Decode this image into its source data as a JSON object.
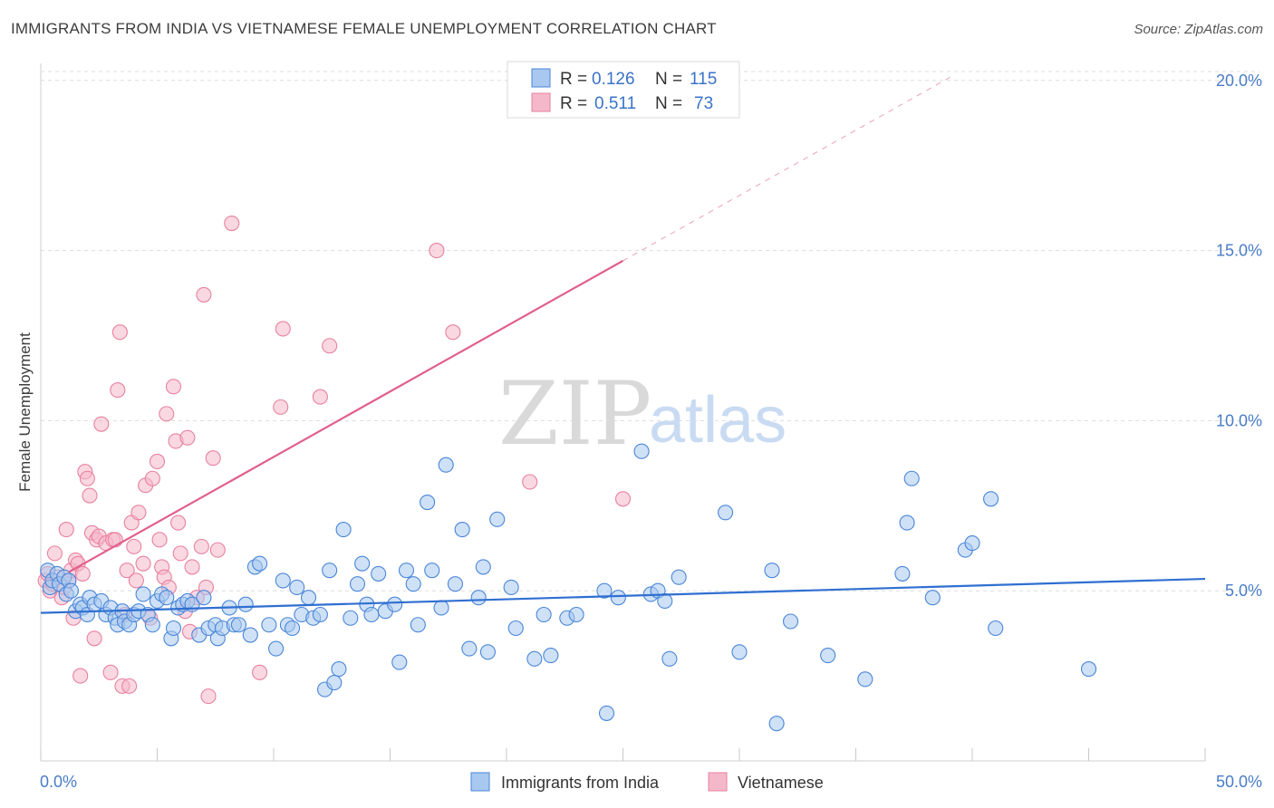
{
  "header": {
    "title": "IMMIGRANTS FROM INDIA VS VIETNAMESE FEMALE UNEMPLOYMENT CORRELATION CHART",
    "source": "Source: ZipAtlas.com"
  },
  "watermark": {
    "zip": "ZIP",
    "atlas": "atlas"
  },
  "legend": {
    "r_label": "R =",
    "n_label": "N =",
    "rows": [
      {
        "r": "0.126",
        "n": "115",
        "color": "#a8c8ef"
      },
      {
        "r": "0.511",
        "n": "73",
        "color": "#f5b8cb"
      }
    ]
  },
  "chart_data": {
    "type": "scatter",
    "title": "IMMIGRANTS FROM INDIA VS VIETNAMESE FEMALE UNEMPLOYMENT CORRELATION CHART",
    "xlabel": "",
    "ylabel": "Female Unemployment",
    "xlim": [
      0,
      50
    ],
    "ylim": [
      0,
      20.5
    ],
    "x_tick_labels": [
      "0.0%",
      "50.0%"
    ],
    "y_ticks": [
      5,
      10,
      15,
      20
    ],
    "y_tick_labels": [
      "5.0%",
      "10.0%",
      "15.0%",
      "20.0%"
    ],
    "grid": "horizontal dashed",
    "legend_position": "top-center",
    "series": [
      {
        "name": "Immigrants from India",
        "color": "#4a86d8",
        "fill": "#a8c8ef",
        "trend": {
          "x": [
            0,
            50
          ],
          "y": [
            4.35,
            5.35
          ],
          "color": "#2f6fd1"
        },
        "points": [
          [
            0.3,
            5.6
          ],
          [
            0.4,
            5.1
          ],
          [
            0.5,
            5.3
          ],
          [
            0.7,
            5.5
          ],
          [
            0.8,
            5.2
          ],
          [
            1.0,
            5.4
          ],
          [
            1.1,
            4.9
          ],
          [
            1.2,
            5.3
          ],
          [
            1.3,
            5.0
          ],
          [
            1.5,
            4.4
          ],
          [
            1.7,
            4.6
          ],
          [
            1.8,
            4.5
          ],
          [
            2.0,
            4.3
          ],
          [
            2.1,
            4.8
          ],
          [
            2.3,
            4.6
          ],
          [
            2.6,
            4.7
          ],
          [
            2.8,
            4.3
          ],
          [
            3.0,
            4.5
          ],
          [
            3.2,
            4.2
          ],
          [
            3.3,
            4.0
          ],
          [
            3.5,
            4.4
          ],
          [
            3.6,
            4.1
          ],
          [
            3.8,
            4.0
          ],
          [
            4.0,
            4.3
          ],
          [
            4.2,
            4.4
          ],
          [
            4.4,
            4.9
          ],
          [
            4.6,
            4.3
          ],
          [
            4.8,
            4.0
          ],
          [
            5.0,
            4.7
          ],
          [
            5.2,
            4.9
          ],
          [
            5.4,
            4.8
          ],
          [
            5.6,
            3.6
          ],
          [
            5.7,
            3.9
          ],
          [
            5.9,
            4.5
          ],
          [
            6.1,
            4.6
          ],
          [
            6.3,
            4.7
          ],
          [
            6.5,
            4.6
          ],
          [
            6.8,
            3.7
          ],
          [
            7.0,
            4.8
          ],
          [
            7.2,
            3.9
          ],
          [
            7.5,
            4.0
          ],
          [
            7.6,
            3.6
          ],
          [
            7.8,
            3.9
          ],
          [
            8.1,
            4.5
          ],
          [
            8.3,
            4.0
          ],
          [
            8.5,
            4.0
          ],
          [
            8.8,
            4.6
          ],
          [
            9.0,
            3.7
          ],
          [
            9.2,
            5.7
          ],
          [
            9.4,
            5.8
          ],
          [
            9.8,
            4.0
          ],
          [
            10.1,
            3.3
          ],
          [
            10.4,
            5.3
          ],
          [
            10.6,
            4.0
          ],
          [
            10.8,
            3.9
          ],
          [
            11.0,
            5.1
          ],
          [
            11.2,
            4.3
          ],
          [
            11.5,
            4.8
          ],
          [
            11.7,
            4.2
          ],
          [
            12.0,
            4.3
          ],
          [
            12.2,
            2.1
          ],
          [
            12.4,
            5.6
          ],
          [
            12.6,
            2.3
          ],
          [
            12.8,
            2.7
          ],
          [
            13.0,
            6.8
          ],
          [
            13.3,
            4.2
          ],
          [
            13.6,
            5.2
          ],
          [
            13.8,
            5.8
          ],
          [
            14.0,
            4.6
          ],
          [
            14.2,
            4.3
          ],
          [
            14.5,
            5.5
          ],
          [
            14.8,
            4.4
          ],
          [
            15.2,
            4.6
          ],
          [
            15.4,
            2.9
          ],
          [
            15.7,
            5.6
          ],
          [
            16.0,
            5.2
          ],
          [
            16.2,
            4.0
          ],
          [
            16.6,
            7.6
          ],
          [
            16.8,
            5.6
          ],
          [
            17.2,
            4.5
          ],
          [
            17.4,
            8.7
          ],
          [
            17.8,
            5.2
          ],
          [
            18.1,
            6.8
          ],
          [
            18.4,
            3.3
          ],
          [
            18.8,
            4.8
          ],
          [
            19.0,
            5.7
          ],
          [
            19.2,
            3.2
          ],
          [
            19.6,
            7.1
          ],
          [
            20.2,
            5.1
          ],
          [
            20.4,
            3.9
          ],
          [
            21.2,
            3.0
          ],
          [
            21.6,
            4.3
          ],
          [
            21.9,
            3.1
          ],
          [
            22.6,
            4.2
          ],
          [
            23.0,
            4.3
          ],
          [
            24.2,
            5.0
          ],
          [
            24.3,
            1.4
          ],
          [
            24.8,
            4.8
          ],
          [
            25.8,
            9.1
          ],
          [
            26.2,
            4.9
          ],
          [
            26.5,
            5.0
          ],
          [
            26.8,
            4.7
          ],
          [
            27.0,
            3.0
          ],
          [
            27.4,
            5.4
          ],
          [
            29.4,
            7.3
          ],
          [
            30.0,
            3.2
          ],
          [
            31.4,
            5.6
          ],
          [
            31.6,
            1.1
          ],
          [
            32.2,
            4.1
          ],
          [
            33.8,
            3.1
          ],
          [
            35.4,
            2.4
          ],
          [
            37.0,
            5.5
          ],
          [
            37.2,
            7.0
          ],
          [
            37.4,
            8.3
          ],
          [
            38.3,
            4.8
          ],
          [
            39.7,
            6.2
          ],
          [
            40.0,
            6.4
          ],
          [
            40.8,
            7.7
          ],
          [
            41.0,
            3.9
          ],
          [
            45.0,
            2.7
          ]
        ]
      },
      {
        "name": "Vietnamese",
        "color": "#e8809f",
        "fill": "#f5b8cb",
        "trend": {
          "x": [
            1.2,
            25.0
          ],
          "y": [
            5.55,
            14.7
          ],
          "color": "#e0608c"
        },
        "trend_extension": {
          "x": [
            25.0,
            39.2
          ],
          "y": [
            14.7,
            20.15
          ]
        },
        "points": [
          [
            0.2,
            5.3
          ],
          [
            0.3,
            5.5
          ],
          [
            0.4,
            5.0
          ],
          [
            0.5,
            5.2
          ],
          [
            0.6,
            6.1
          ],
          [
            0.7,
            5.4
          ],
          [
            0.9,
            4.8
          ],
          [
            1.0,
            5.1
          ],
          [
            1.1,
            6.8
          ],
          [
            1.2,
            5.3
          ],
          [
            1.3,
            5.6
          ],
          [
            1.4,
            4.2
          ],
          [
            1.5,
            5.9
          ],
          [
            1.6,
            5.8
          ],
          [
            1.7,
            2.5
          ],
          [
            1.8,
            5.5
          ],
          [
            1.9,
            8.5
          ],
          [
            2.0,
            8.3
          ],
          [
            2.1,
            7.8
          ],
          [
            2.2,
            6.7
          ],
          [
            2.3,
            3.6
          ],
          [
            2.4,
            6.5
          ],
          [
            2.5,
            6.6
          ],
          [
            2.6,
            9.9
          ],
          [
            2.8,
            6.4
          ],
          [
            3.0,
            2.6
          ],
          [
            3.1,
            6.5
          ],
          [
            3.2,
            6.5
          ],
          [
            3.3,
            10.9
          ],
          [
            3.4,
            12.6
          ],
          [
            3.5,
            2.2
          ],
          [
            3.6,
            4.3
          ],
          [
            3.7,
            5.6
          ],
          [
            3.8,
            2.2
          ],
          [
            3.9,
            7.0
          ],
          [
            4.0,
            6.3
          ],
          [
            4.1,
            5.3
          ],
          [
            4.2,
            7.3
          ],
          [
            4.4,
            5.8
          ],
          [
            4.5,
            8.1
          ],
          [
            4.7,
            4.2
          ],
          [
            4.8,
            8.3
          ],
          [
            5.0,
            8.8
          ],
          [
            5.1,
            6.5
          ],
          [
            5.2,
            5.7
          ],
          [
            5.3,
            5.4
          ],
          [
            5.4,
            10.2
          ],
          [
            5.5,
            5.1
          ],
          [
            5.7,
            11.0
          ],
          [
            5.8,
            9.4
          ],
          [
            5.9,
            7.0
          ],
          [
            6.0,
            6.1
          ],
          [
            6.2,
            4.4
          ],
          [
            6.3,
            9.5
          ],
          [
            6.4,
            3.8
          ],
          [
            6.5,
            5.7
          ],
          [
            6.7,
            4.8
          ],
          [
            6.9,
            6.3
          ],
          [
            7.0,
            13.7
          ],
          [
            7.1,
            5.1
          ],
          [
            7.2,
            1.9
          ],
          [
            7.4,
            8.9
          ],
          [
            7.6,
            6.2
          ],
          [
            8.2,
            15.8
          ],
          [
            9.4,
            2.6
          ],
          [
            10.3,
            10.4
          ],
          [
            10.4,
            12.7
          ],
          [
            12.0,
            10.7
          ],
          [
            12.4,
            12.2
          ],
          [
            17.0,
            15.0
          ],
          [
            17.7,
            12.6
          ],
          [
            21.0,
            8.2
          ],
          [
            25.0,
            7.7
          ]
        ]
      }
    ]
  },
  "bottom_legend": [
    "Immigrants from India",
    "Vietnamese"
  ]
}
